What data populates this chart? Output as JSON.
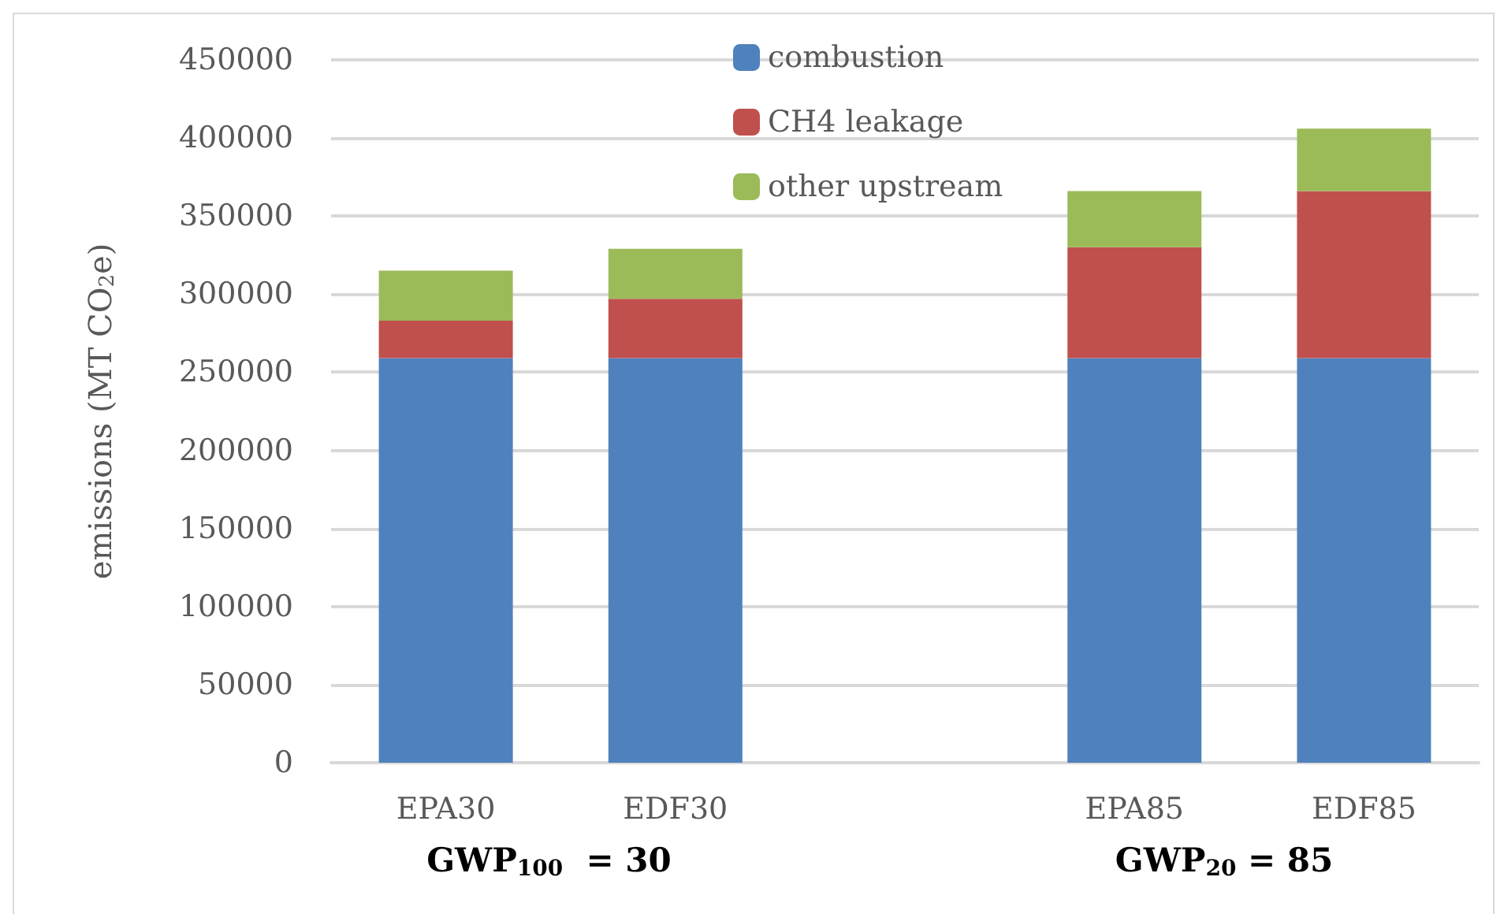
{
  "chart_data": {
    "type": "bar",
    "stacked": true,
    "ylabel": "emissions (MT CO$_{2}$e)",
    "categories": [
      "EPA30",
      "EDF30",
      null,
      "EPA85",
      "EDF85"
    ],
    "series": [
      {
        "name": "combustion",
        "color": "#4f81bd",
        "values": [
          259000,
          259000,
          null,
          259000,
          259000
        ]
      },
      {
        "name": "CH4 leakage",
        "color": "#c0504d",
        "values": [
          24000,
          38000,
          null,
          71000,
          107000
        ]
      },
      {
        "name": "other upstream",
        "color": "#9bbb59",
        "values": [
          32000,
          32000,
          null,
          36000,
          40000
        ]
      }
    ],
    "annotations": [
      "GWP$_{100}$  = 30",
      "GWP$_{20}$ = 85"
    ],
    "ylim": [
      0,
      450000
    ],
    "yticks": [
      0,
      50000,
      100000,
      150000,
      200000,
      250000,
      300000,
      350000,
      400000,
      450000
    ],
    "grid": "y",
    "legend": "top"
  }
}
